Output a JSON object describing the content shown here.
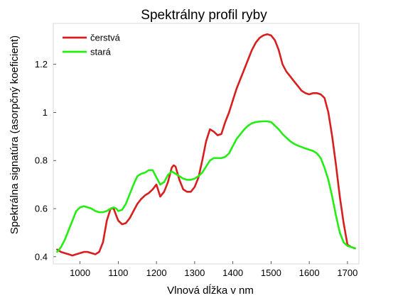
{
  "chart_data": {
    "type": "line",
    "title": "Spektrálny profil ryby",
    "xlabel": "Vlnová dĺžka v nm",
    "ylabel": "Spektrálna signatúra (asorpčný koeficient)",
    "xlim": [
      930,
      1730
    ],
    "ylim": [
      0.37,
      1.37
    ],
    "xticks": [
      1000,
      1100,
      1200,
      1300,
      1400,
      1500,
      1600,
      1700
    ],
    "yticks": [
      0.4,
      0.6,
      0.8,
      1,
      1.2
    ],
    "ytick_labels": [
      "0.4",
      "0.6",
      "0.8",
      "1",
      "1.2"
    ],
    "grid": false,
    "legend_position": "top-left",
    "series": [
      {
        "name": "čerstvá",
        "color": "#d81e1e",
        "x": [
          940,
          950,
          960,
          970,
          980,
          990,
          1000,
          1010,
          1020,
          1030,
          1040,
          1050,
          1060,
          1070,
          1080,
          1088,
          1095,
          1100,
          1110,
          1120,
          1130,
          1140,
          1150,
          1160,
          1170,
          1180,
          1190,
          1200,
          1210,
          1220,
          1230,
          1240,
          1245,
          1250,
          1260,
          1270,
          1280,
          1290,
          1300,
          1310,
          1320,
          1330,
          1340,
          1350,
          1360,
          1370,
          1380,
          1390,
          1400,
          1410,
          1420,
          1430,
          1440,
          1450,
          1460,
          1470,
          1480,
          1490,
          1500,
          1510,
          1520,
          1530,
          1540,
          1550,
          1560,
          1570,
          1580,
          1590,
          1600,
          1610,
          1620,
          1630,
          1640,
          1650,
          1660,
          1670,
          1680,
          1690,
          1700,
          1710,
          1720
        ],
        "y": [
          0.43,
          0.42,
          0.415,
          0.41,
          0.405,
          0.41,
          0.415,
          0.42,
          0.42,
          0.415,
          0.41,
          0.42,
          0.46,
          0.55,
          0.6,
          0.6,
          0.57,
          0.55,
          0.535,
          0.54,
          0.56,
          0.59,
          0.62,
          0.64,
          0.655,
          0.665,
          0.68,
          0.7,
          0.65,
          0.67,
          0.71,
          0.77,
          0.78,
          0.775,
          0.72,
          0.68,
          0.67,
          0.67,
          0.69,
          0.73,
          0.8,
          0.88,
          0.93,
          0.92,
          0.905,
          0.91,
          0.96,
          1.0,
          1.05,
          1.1,
          1.14,
          1.18,
          1.22,
          1.26,
          1.29,
          1.31,
          1.32,
          1.325,
          1.32,
          1.3,
          1.26,
          1.2,
          1.17,
          1.15,
          1.13,
          1.11,
          1.09,
          1.08,
          1.075,
          1.08,
          1.08,
          1.075,
          1.06,
          1.0,
          0.9,
          0.78,
          0.65,
          0.54,
          0.45,
          0.44,
          0.435
        ]
      },
      {
        "name": "stará",
        "color": "#22ee11",
        "x": [
          940,
          950,
          960,
          970,
          980,
          990,
          1000,
          1010,
          1020,
          1030,
          1040,
          1050,
          1060,
          1070,
          1080,
          1088,
          1095,
          1100,
          1110,
          1120,
          1130,
          1140,
          1150,
          1160,
          1170,
          1180,
          1190,
          1200,
          1210,
          1220,
          1230,
          1240,
          1250,
          1260,
          1270,
          1280,
          1290,
          1300,
          1310,
          1320,
          1330,
          1340,
          1350,
          1360,
          1370,
          1380,
          1390,
          1400,
          1410,
          1420,
          1430,
          1440,
          1450,
          1460,
          1470,
          1480,
          1490,
          1500,
          1510,
          1520,
          1530,
          1540,
          1550,
          1560,
          1570,
          1580,
          1590,
          1600,
          1610,
          1620,
          1630,
          1640,
          1650,
          1660,
          1670,
          1680,
          1690,
          1700,
          1710,
          1720
        ],
        "y": [
          0.42,
          0.44,
          0.47,
          0.51,
          0.55,
          0.59,
          0.605,
          0.61,
          0.605,
          0.6,
          0.59,
          0.585,
          0.585,
          0.59,
          0.6,
          0.605,
          0.6,
          0.59,
          0.595,
          0.62,
          0.66,
          0.7,
          0.735,
          0.745,
          0.75,
          0.76,
          0.76,
          0.73,
          0.7,
          0.71,
          0.74,
          0.755,
          0.745,
          0.735,
          0.725,
          0.72,
          0.72,
          0.725,
          0.735,
          0.75,
          0.775,
          0.8,
          0.81,
          0.81,
          0.81,
          0.815,
          0.83,
          0.86,
          0.89,
          0.91,
          0.93,
          0.945,
          0.955,
          0.96,
          0.962,
          0.963,
          0.963,
          0.96,
          0.945,
          0.93,
          0.91,
          0.895,
          0.88,
          0.87,
          0.862,
          0.856,
          0.85,
          0.845,
          0.84,
          0.83,
          0.81,
          0.77,
          0.72,
          0.65,
          0.57,
          0.5,
          0.46,
          0.445,
          0.44,
          0.435
        ]
      }
    ]
  }
}
